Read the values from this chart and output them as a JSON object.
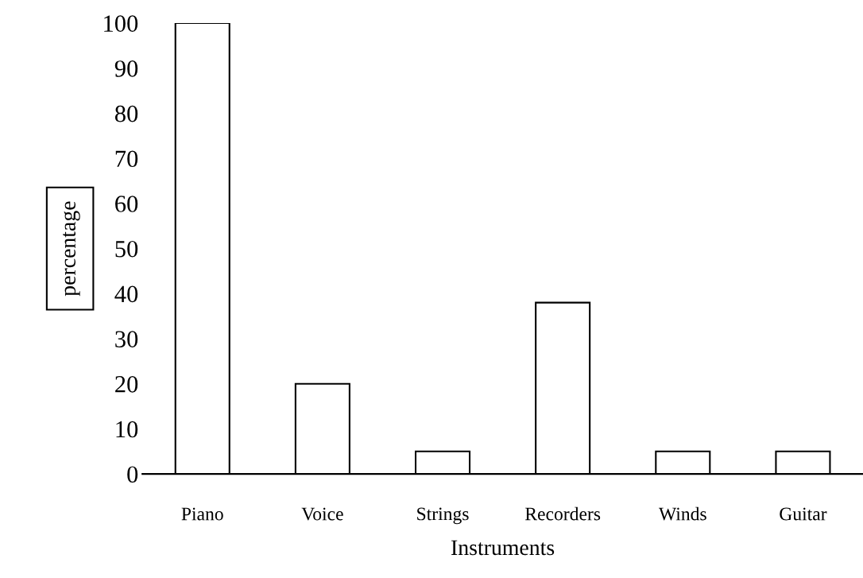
{
  "chart_data": {
    "type": "bar",
    "xlabel": "Instruments",
    "ylabel": "percentage",
    "categories": [
      "Piano",
      "Voice",
      "Strings",
      "Recorders",
      "Winds",
      "Guitar"
    ],
    "values": [
      100,
      20,
      5,
      38,
      5,
      5
    ],
    "color": "#ffffff",
    "ylim": [
      0,
      100
    ],
    "yticks": [
      0,
      10,
      20,
      30,
      40,
      50,
      60,
      70,
      80,
      90,
      100
    ],
    "grid": false,
    "legend": false
  }
}
